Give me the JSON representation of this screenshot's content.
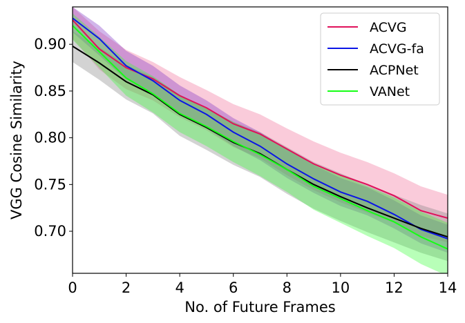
{
  "chart_data": {
    "type": "line",
    "title": "",
    "xlabel": "No. of Future Frames",
    "ylabel": "VGG Cosine Similarity",
    "xlim": [
      0,
      14
    ],
    "ylim": [
      0.655,
      0.94
    ],
    "xticks": [
      0,
      2,
      4,
      6,
      8,
      10,
      12,
      14
    ],
    "xtick_labels": [
      "0",
      "2",
      "4",
      "6",
      "8",
      "10",
      "12",
      "14"
    ],
    "yticks": [
      0.7,
      0.75,
      0.8,
      0.85,
      0.9
    ],
    "ytick_labels": [
      "0.70",
      "0.75",
      "0.80",
      "0.85",
      "0.90"
    ],
    "grid": false,
    "legend_position": "top-right",
    "x": [
      0,
      1,
      2,
      3,
      4,
      5,
      6,
      7,
      8,
      9,
      10,
      11,
      12,
      13,
      14
    ],
    "series": [
      {
        "name": "ACVG",
        "color": "#e0105a",
        "band_color": "#f06b95",
        "values": [
          0.926,
          0.895,
          0.875,
          0.863,
          0.845,
          0.832,
          0.815,
          0.804,
          0.788,
          0.772,
          0.76,
          0.75,
          0.738,
          0.722,
          0.714
        ],
        "lower": [
          0.906,
          0.873,
          0.852,
          0.84,
          0.822,
          0.808,
          0.79,
          0.778,
          0.76,
          0.744,
          0.731,
          0.72,
          0.709,
          0.695,
          0.688
        ],
        "upper": [
          0.94,
          0.914,
          0.894,
          0.881,
          0.865,
          0.851,
          0.836,
          0.825,
          0.81,
          0.796,
          0.784,
          0.774,
          0.762,
          0.748,
          0.739
        ]
      },
      {
        "name": "ACVG-fa",
        "color": "#0a14e6",
        "band_color": "#7b2ec4",
        "values": [
          0.928,
          0.906,
          0.877,
          0.861,
          0.84,
          0.825,
          0.806,
          0.791,
          0.772,
          0.756,
          0.742,
          0.732,
          0.718,
          0.702,
          0.692
        ],
        "lower": [
          0.913,
          0.888,
          0.862,
          0.846,
          0.825,
          0.81,
          0.791,
          0.776,
          0.757,
          0.741,
          0.727,
          0.717,
          0.703,
          0.687,
          0.677
        ],
        "upper": [
          0.94,
          0.92,
          0.893,
          0.877,
          0.856,
          0.84,
          0.821,
          0.806,
          0.788,
          0.771,
          0.757,
          0.747,
          0.733,
          0.717,
          0.707
        ]
      },
      {
        "name": "ACPNet",
        "color": "#000000",
        "band_color": "#808080",
        "values": [
          0.898,
          0.88,
          0.86,
          0.846,
          0.825,
          0.811,
          0.795,
          0.783,
          0.766,
          0.75,
          0.737,
          0.725,
          0.714,
          0.703,
          0.694
        ],
        "lower": [
          0.881,
          0.862,
          0.841,
          0.826,
          0.802,
          0.787,
          0.771,
          0.758,
          0.74,
          0.724,
          0.711,
          0.699,
          0.688,
          0.677,
          0.668
        ],
        "upper": [
          0.914,
          0.897,
          0.878,
          0.865,
          0.846,
          0.832,
          0.817,
          0.806,
          0.79,
          0.774,
          0.762,
          0.75,
          0.739,
          0.728,
          0.719
        ]
      },
      {
        "name": "VANet",
        "color": "#14ff14",
        "band_color": "#33ff33",
        "values": [
          0.92,
          0.892,
          0.864,
          0.847,
          0.826,
          0.812,
          0.796,
          0.782,
          0.766,
          0.748,
          0.735,
          0.722,
          0.71,
          0.694,
          0.681
        ],
        "lower": [
          0.905,
          0.875,
          0.845,
          0.827,
          0.806,
          0.791,
          0.774,
          0.759,
          0.742,
          0.723,
          0.709,
          0.695,
          0.682,
          0.665,
          0.652
        ],
        "upper": [
          0.933,
          0.908,
          0.882,
          0.866,
          0.846,
          0.832,
          0.817,
          0.804,
          0.789,
          0.772,
          0.76,
          0.748,
          0.736,
          0.721,
          0.709
        ]
      }
    ]
  }
}
